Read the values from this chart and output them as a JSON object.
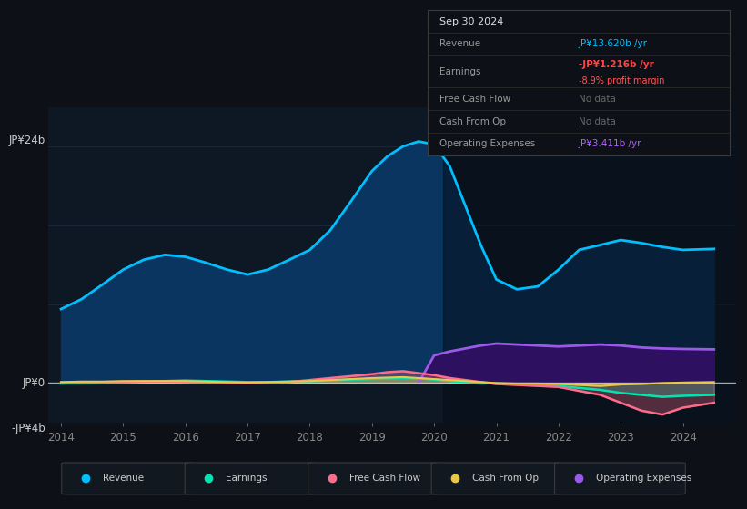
{
  "bg_color": "#0d1117",
  "chart_bg": "#0e1724",
  "grid_color": "#1a2a3a",
  "zero_line_color": "#cccccc",
  "years_x": [
    2014,
    2014.33,
    2014.67,
    2015,
    2015.33,
    2015.67,
    2016,
    2016.33,
    2016.67,
    2017,
    2017.33,
    2017.67,
    2018,
    2018.33,
    2018.67,
    2019,
    2019.25,
    2019.5,
    2019.75,
    2020,
    2020.25,
    2020.5,
    2020.75,
    2021,
    2021.33,
    2021.67,
    2022,
    2022.33,
    2022.67,
    2023,
    2023.33,
    2023.67,
    2024,
    2024.5
  ],
  "revenue": [
    7.5,
    8.5,
    10.0,
    11.5,
    12.5,
    13.0,
    12.8,
    12.2,
    11.5,
    11.0,
    11.5,
    12.5,
    13.5,
    15.5,
    18.5,
    21.5,
    23.0,
    24.0,
    24.5,
    24.2,
    22.0,
    18.0,
    14.0,
    10.5,
    9.5,
    9.8,
    11.5,
    13.5,
    14.0,
    14.5,
    14.2,
    13.8,
    13.5,
    13.6
  ],
  "earnings": [
    -0.05,
    0.0,
    0.05,
    0.1,
    0.15,
    0.2,
    0.25,
    0.2,
    0.15,
    0.1,
    0.1,
    0.15,
    0.2,
    0.25,
    0.35,
    0.4,
    0.45,
    0.5,
    0.45,
    0.35,
    0.2,
    0.1,
    0.0,
    -0.05,
    -0.1,
    -0.2,
    -0.3,
    -0.5,
    -0.7,
    -1.0,
    -1.2,
    -1.4,
    -1.3,
    -1.2
  ],
  "free_cash_flow": [
    0.05,
    0.05,
    0.1,
    0.1,
    0.15,
    0.15,
    0.1,
    0.05,
    0.0,
    0.0,
    0.05,
    0.1,
    0.3,
    0.5,
    0.7,
    0.9,
    1.1,
    1.2,
    1.0,
    0.8,
    0.5,
    0.3,
    0.1,
    -0.1,
    -0.2,
    -0.3,
    -0.4,
    -0.8,
    -1.2,
    -2.0,
    -2.8,
    -3.2,
    -2.5,
    -2.0
  ],
  "cash_from_op": [
    0.1,
    0.15,
    0.15,
    0.2,
    0.2,
    0.2,
    0.2,
    0.15,
    0.1,
    0.05,
    0.1,
    0.15,
    0.2,
    0.3,
    0.4,
    0.5,
    0.55,
    0.6,
    0.5,
    0.4,
    0.3,
    0.2,
    0.1,
    0.0,
    -0.05,
    -0.05,
    -0.1,
    -0.2,
    -0.3,
    -0.15,
    -0.1,
    0.0,
    0.05,
    0.1
  ],
  "opex_x": [
    2019.75,
    2020,
    2020.25,
    2020.5,
    2020.75,
    2021,
    2021.33,
    2021.67,
    2022,
    2022.33,
    2022.67,
    2023,
    2023.33,
    2023.67,
    2024,
    2024.5
  ],
  "opex_y": [
    0,
    2.8,
    3.2,
    3.5,
    3.8,
    4.0,
    3.9,
    3.8,
    3.7,
    3.8,
    3.9,
    3.8,
    3.6,
    3.5,
    3.45,
    3.411
  ],
  "ylim": [
    -4,
    28
  ],
  "xlim": [
    2013.8,
    2024.85
  ],
  "revenue_color": "#00bfff",
  "earnings_color": "#00e5b0",
  "fcf_color": "#ff6b8a",
  "cash_op_color": "#e8c84a",
  "opex_color": "#9b59e8",
  "revenue_fill_color": "#0a3560",
  "opex_fill_color": "#2d1060",
  "dark_region_start": 2020.15,
  "infobox": {
    "date": "Sep 30 2024",
    "revenue_label": "Revenue",
    "revenue_value": "JP¥13.620b /yr",
    "revenue_color": "#00bfff",
    "earnings_label": "Earnings",
    "earnings_value": "-JP¥1.216b /yr",
    "earnings_value_color": "#ff4444",
    "earnings_margin": "-8.9% profit margin",
    "earnings_margin_color": "#ff5555",
    "fcf_label": "Free Cash Flow",
    "fcf_value": "No data",
    "cashop_label": "Cash From Op",
    "cashop_value": "No data",
    "opex_label": "Operating Expenses",
    "opex_value": "JP¥3.411b /yr",
    "opex_color": "#b060ff"
  },
  "legend": [
    {
      "label": "Revenue",
      "color": "#00bfff"
    },
    {
      "label": "Earnings",
      "color": "#00e5b0"
    },
    {
      "label": "Free Cash Flow",
      "color": "#ff6b8a"
    },
    {
      "label": "Cash From Op",
      "color": "#e8c84a"
    },
    {
      "label": "Operating Expenses",
      "color": "#9b59e8"
    }
  ],
  "ytick_positions": [
    -4,
    0,
    8,
    16,
    24
  ],
  "ytick_labels_top": "JP¥24b",
  "ytick_label_zero": "JP¥0",
  "ytick_label_neg": "-JP¥4b",
  "xticks": [
    2014,
    2015,
    2016,
    2017,
    2018,
    2019,
    2020,
    2021,
    2022,
    2023,
    2024
  ],
  "xtick_labels": [
    "2014",
    "2015",
    "2016",
    "2017",
    "2018",
    "2019",
    "2020",
    "2021",
    "2022",
    "2023",
    "2024"
  ]
}
